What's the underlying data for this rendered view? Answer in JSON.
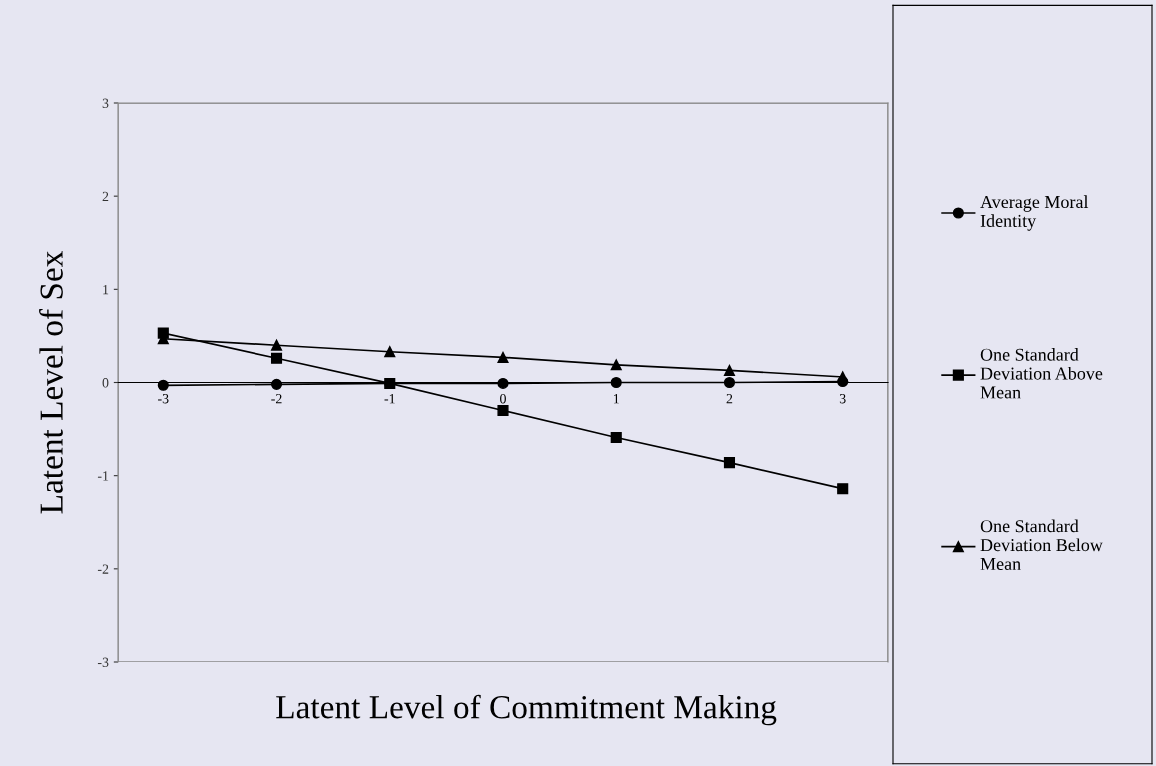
{
  "chart_data": {
    "type": "line",
    "xlabel": "Latent Level of Commitment Making",
    "ylabel": "Latent Level of Sex",
    "categories": [
      "-3",
      "-2",
      "-1",
      "0",
      "1",
      "2",
      "3"
    ],
    "ylim": [
      -3,
      3
    ],
    "yticks": [
      -3,
      -2,
      -1,
      0,
      1,
      2,
      3
    ],
    "grid": false,
    "legend": "right",
    "series": [
      {
        "name": "Average Moral Identity",
        "color": "#000000",
        "marker": "circle",
        "values": [
          -0.03,
          -0.02,
          -0.01,
          -0.01,
          0,
          0,
          0.01
        ]
      },
      {
        "name": "One Standard Deviation Above Mean",
        "color": "#000000",
        "marker": "square",
        "values": [
          0.53,
          0.26,
          -0.01,
          -0.3,
          -0.59,
          -0.86,
          -1.14
        ]
      },
      {
        "name": "One Standard Deviation Below Mean",
        "color": "#000000",
        "marker": "triangle",
        "values": [
          0.47,
          0.4,
          0.33,
          0.27,
          0.19,
          0.13,
          0.06
        ]
      }
    ]
  }
}
